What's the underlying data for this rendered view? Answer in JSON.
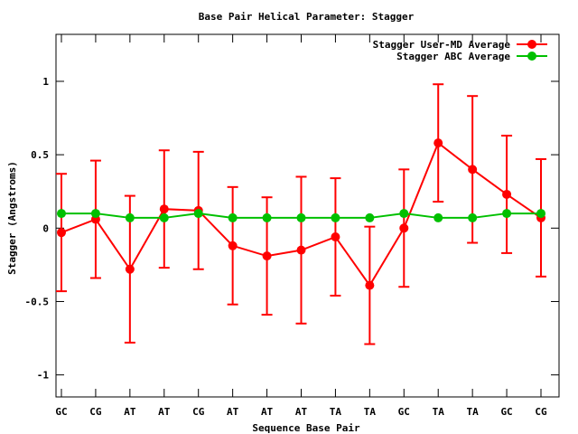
{
  "chart_data": {
    "type": "line",
    "title": "Base Pair Helical Parameter: Stagger",
    "xlabel": "Sequence Base Pair",
    "ylabel": "Stagger (Angstroms)",
    "categories": [
      "GC",
      "CG",
      "AT",
      "AT",
      "CG",
      "AT",
      "AT",
      "AT",
      "TA",
      "TA",
      "GC",
      "TA",
      "TA",
      "GC",
      "CG"
    ],
    "ylim": [
      -1.15,
      1.32
    ],
    "yticks": [
      -1,
      -0.5,
      0,
      0.5,
      1
    ],
    "ytick_labels": [
      "-1",
      "-0.5",
      "0",
      "0.5",
      "1"
    ],
    "legend_position": "top-right",
    "grid": false,
    "series": [
      {
        "name": "Stagger User-MD Average",
        "color": "#ff0000",
        "values": [
          -0.03,
          0.06,
          -0.28,
          0.13,
          0.12,
          -0.12,
          -0.19,
          -0.15,
          -0.06,
          -0.39,
          0.0,
          0.58,
          0.4,
          0.23,
          0.07
        ],
        "errors": [
          0.4,
          0.4,
          0.5,
          0.4,
          0.4,
          0.4,
          0.4,
          0.5,
          0.4,
          0.4,
          0.4,
          0.4,
          0.5,
          0.4,
          0.4
        ]
      },
      {
        "name": "Stagger ABC Average",
        "color": "#00c000",
        "values": [
          0.1,
          0.1,
          0.07,
          0.07,
          0.1,
          0.07,
          0.07,
          0.07,
          0.07,
          0.07,
          0.1,
          0.07,
          0.07,
          0.1,
          0.1
        ]
      }
    ]
  }
}
